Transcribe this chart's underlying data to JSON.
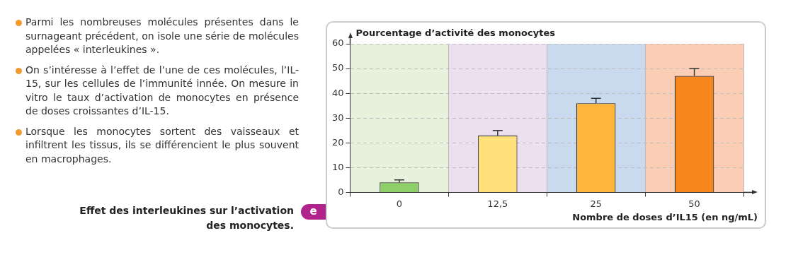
{
  "chart_data": {
    "type": "bar",
    "title": "Effet des interleukines sur l’activation des monocytes.",
    "ylabel": "Pourcentage d’activité des monocytes",
    "xlabel": "Nombre de doses d’IL15 (en ng/mL)",
    "categories": [
      "0",
      "12,5",
      "25",
      "50"
    ],
    "values": [
      4,
      23,
      36,
      47
    ],
    "colors": [
      "#8fcf6a",
      "#ffe07a",
      "#ffb43a",
      "#f7861c"
    ],
    "errors": [
      [
        4,
        5
      ],
      [
        23,
        25
      ],
      [
        36,
        38
      ],
      [
        47,
        50
      ]
    ],
    "ylim": [
      0,
      60
    ],
    "yticks": [
      0,
      10,
      20,
      30,
      40,
      50,
      60
    ],
    "grid": true,
    "bands": [
      {
        "axis": "x",
        "from": "0",
        "to": "0",
        "color": "#e6f2dc"
      },
      {
        "axis": "x",
        "from": "12,5",
        "to": "12,5",
        "color": "#ebdff0"
      },
      {
        "axis": "x",
        "from": "25",
        "to": "25",
        "color": "#c9d9ee"
      },
      {
        "axis": "x",
        "from": "50",
        "to": "50",
        "color": "#fbcdb5"
      }
    ],
    "annotations": [
      "Parmi les nombreuses molécules présentes dans le surnageant précédent, on isole une série de molécules appelées « interleukines ».",
      "On s’intéresse à l’effet de l’une de ces molécules, l’IL-15, sur les cellules de l’immunité innée. On mesure in vitro le taux d’activation de monocytes en présence de doses croissantes d’IL-15.",
      "Lorsque les monocytes sortent des vaisseaux et infiltrent les tissus, ils se différencient le plus souvent en macrophages.",
      "e"
    ]
  }
}
